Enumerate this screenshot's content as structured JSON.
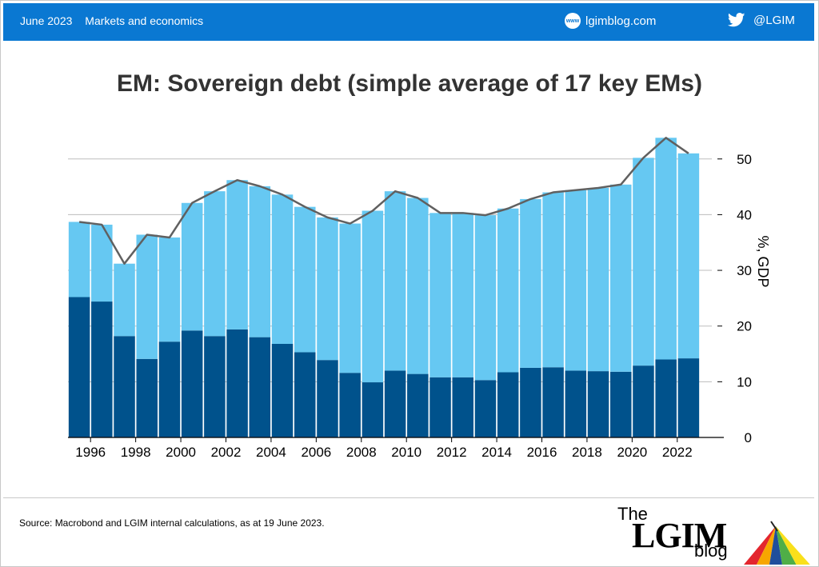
{
  "header": {
    "date": "June 2023",
    "category": "Markets and economics",
    "site": "lgimblog.com",
    "twitter_handle": "@LGIM",
    "site_icon": "www-globe-icon",
    "twitter_icon": "twitter-bird-icon",
    "bar_color": "#0a78d2"
  },
  "footer": {
    "source": "Source: Macrobond and LGIM internal calculations, as at 19 June 2023.",
    "logo": {
      "the": "The",
      "name": "LGIM",
      "blog": "blog"
    }
  },
  "chart_data": {
    "type": "bar",
    "stacked": true,
    "title": "EM: Sovereign debt (simple average of 17 key EMs)",
    "ylabel": "%, GDP",
    "xlabel": "",
    "ylim": [
      0,
      57
    ],
    "yticks": [
      0,
      10,
      20,
      30,
      40,
      50
    ],
    "y_axis_side": "right",
    "grid": "horizontal",
    "x": [
      1995.5,
      1996.5,
      1997.5,
      1998.5,
      1999.5,
      2000.5,
      2001.5,
      2002.5,
      2003.5,
      2004.5,
      2005.5,
      2006.5,
      2007.5,
      2008.5,
      2009.5,
      2010.5,
      2011.5,
      2012.5,
      2013.5,
      2014.5,
      2015.5,
      2016.5,
      2017.5,
      2018.5,
      2019.5,
      2020.5,
      2021.5,
      2022.5
    ],
    "xticks": [
      1996,
      1998,
      2000,
      2002,
      2004,
      2006,
      2008,
      2010,
      2012,
      2014,
      2016,
      2018,
      2020,
      2022
    ],
    "series": [
      {
        "values": [
          25.2,
          24.4,
          18.2,
          14.1,
          17.2,
          19.2,
          18.2,
          19.4,
          18.0,
          16.8,
          15.3,
          13.9,
          11.6,
          9.9,
          12.0,
          11.4,
          10.8,
          10.8,
          10.3,
          11.7,
          12.5,
          12.6,
          12.0,
          11.9,
          11.8,
          12.9,
          14.0,
          14.2
        ],
        "color": "#00528c"
      },
      {
        "values": [
          13.5,
          13.8,
          13.0,
          22.3,
          18.7,
          22.9,
          26.0,
          26.8,
          27.1,
          26.8,
          26.1,
          25.6,
          26.8,
          30.8,
          32.2,
          31.6,
          29.5,
          29.5,
          29.6,
          29.4,
          30.3,
          31.4,
          32.4,
          32.9,
          33.6,
          37.3,
          39.8,
          36.8
        ],
        "color": "#66c8f2"
      }
    ],
    "line": {
      "x": [
        1995.5,
        1996.5,
        1997.5,
        1998.5,
        1999.5,
        2000.5,
        2001.5,
        2002.5,
        2003.5,
        2004.5,
        2005.5,
        2006.5,
        2007.5,
        2008.5,
        2009.5,
        2010.5,
        2011.5,
        2012.5,
        2013.5,
        2014.5,
        2015.5,
        2016.5,
        2017.5,
        2018.5,
        2019.5,
        2020.5,
        2021.5,
        2022.5
      ],
      "values": [
        38.7,
        38.2,
        31.2,
        36.4,
        35.9,
        42.1,
        44.2,
        46.2,
        45.1,
        43.6,
        41.4,
        39.5,
        38.4,
        40.7,
        44.2,
        43.0,
        40.3,
        40.3,
        39.9,
        41.1,
        42.8,
        44.0,
        44.4,
        44.8,
        45.4,
        50.2,
        53.8,
        51.0
      ],
      "color": "#606060"
    }
  }
}
